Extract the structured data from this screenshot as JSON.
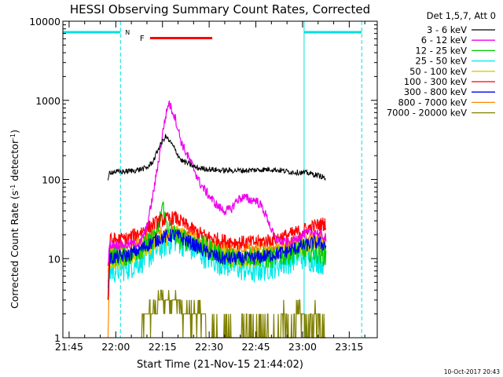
{
  "chart_data": {
    "type": "line",
    "title": "HESSI Observing Summary Count Rates, Corrected",
    "xlabel": "Start Time (21-Nov-15 21:44:02)",
    "ylabel_main": "Corrected Count Rate (s",
    "ylabel_sup1": "-1",
    "ylabel_mid": " detector",
    "ylabel_sup2": "-1",
    "ylabel_end": ")",
    "yscale": "log",
    "ylim": [
      1,
      10000
    ],
    "xlim_minutes": [
      -1,
      100
    ],
    "x_ticks": [
      {
        "m": 1,
        "label": "21:45"
      },
      {
        "m": 16,
        "label": "22:00"
      },
      {
        "m": 31,
        "label": "22:15"
      },
      {
        "m": 46,
        "label": "22:30"
      },
      {
        "m": 61,
        "label": "22:45"
      },
      {
        "m": 76,
        "label": "23:00"
      },
      {
        "m": 91,
        "label": "23:15"
      }
    ],
    "y_ticks": [
      {
        "v": 1,
        "label": "1"
      },
      {
        "v": 10,
        "label": "10"
      },
      {
        "v": 100,
        "label": "100"
      },
      {
        "v": 1000,
        "label": "1000"
      },
      {
        "v": 10000,
        "label": "10000"
      }
    ],
    "legend_header": "Det 1,5,7, Att 0",
    "legend_position": "right",
    "footer_date": "10-Oct-2017 20:43",
    "flag_labels": {
      "night": "N",
      "flare": "F"
    },
    "night_intervals": [
      [
        -1,
        17.5
      ],
      [
        76.5,
        95
      ]
    ],
    "night_lines": [
      17.5,
      76.5,
      95
    ],
    "flare_interval": [
      27,
      47
    ],
    "series": [
      {
        "name": "3 - 6 keV",
        "color": "#000000",
        "x": [
          13.5,
          14,
          18,
          22,
          26,
          28,
          30,
          32,
          34,
          37,
          42,
          50,
          58,
          66,
          72,
          78,
          82,
          83.5
        ],
        "y": [
          90,
          125,
          125,
          130,
          140,
          170,
          260,
          350,
          280,
          175,
          140,
          130,
          130,
          135,
          125,
          120,
          110,
          102
        ]
      },
      {
        "name": "6 - 12 keV",
        "color": "#ee00ee",
        "x": [
          13.5,
          14,
          20,
          24,
          26,
          28,
          30,
          31.5,
          33,
          35,
          37,
          39,
          41,
          43,
          45,
          47,
          49,
          51,
          53,
          55,
          57,
          59,
          61,
          63,
          65,
          67,
          70,
          72,
          76,
          80,
          83.5
        ],
        "y": [
          8,
          15,
          15,
          16,
          25,
          65,
          200,
          500,
          950,
          620,
          300,
          200,
          140,
          90,
          70,
          55,
          45,
          40,
          42,
          55,
          60,
          55,
          55,
          45,
          30,
          18,
          16,
          16,
          20,
          22,
          18
        ]
      },
      {
        "name": "12 - 25 keV",
        "color": "#00cc00",
        "x": [
          13.5,
          14,
          20,
          25,
          28,
          30,
          31,
          32,
          34,
          36,
          40,
          45,
          50,
          55,
          60,
          65,
          70,
          75,
          80,
          83.5
        ],
        "y": [
          4,
          11,
          11,
          14,
          18,
          28,
          48,
          30,
          22,
          18,
          17,
          14,
          11,
          10,
          11,
          10,
          11,
          13,
          12,
          11
        ]
      },
      {
        "name": "25 - 50 keV",
        "color": "#00e8e8",
        "x": [
          13.5,
          14,
          20,
          25,
          30,
          35,
          40,
          45,
          50,
          55,
          60,
          65,
          70,
          75,
          80,
          83.5
        ],
        "y": [
          4,
          7,
          8,
          10,
          14,
          18,
          14,
          11,
          9,
          8,
          7,
          8,
          9,
          11,
          10,
          9
        ]
      },
      {
        "name": "50 - 100 keV",
        "color": "#ddcc00",
        "x": [
          13.5,
          14,
          20,
          25,
          30,
          35,
          40,
          45,
          50,
          55,
          60,
          65,
          70,
          75,
          80,
          83.5
        ],
        "y": [
          7,
          9,
          10,
          13,
          17,
          21,
          18,
          14,
          11,
          10,
          10,
          11,
          12,
          14,
          15,
          14
        ]
      },
      {
        "name": "100 - 300 keV",
        "color": "#ff0000",
        "x": [
          13.5,
          14,
          20,
          25,
          30,
          35,
          40,
          45,
          50,
          55,
          60,
          65,
          70,
          75,
          80,
          83.5
        ],
        "y": [
          3,
          17,
          18,
          23,
          30,
          33,
          24,
          19,
          17,
          16,
          16,
          17,
          19,
          22,
          26,
          28
        ]
      },
      {
        "name": "300 - 800 keV",
        "color": "#0000ee",
        "x": [
          13.5,
          14,
          20,
          25,
          30,
          35,
          40,
          45,
          50,
          55,
          60,
          65,
          70,
          75,
          80,
          83.5
        ],
        "y": [
          3,
          10,
          11,
          14,
          18,
          20,
          16,
          12,
          10,
          10,
          10,
          11,
          12,
          14,
          16,
          15
        ]
      },
      {
        "name": "800 - 7000 keV",
        "color": "#ff8800",
        "x": [
          13.5,
          14,
          20,
          25,
          30,
          35,
          40,
          45,
          50,
          55,
          60,
          65,
          70,
          75,
          80,
          83.5
        ],
        "y": [
          1,
          13,
          14,
          17,
          21,
          22,
          19,
          15,
          13,
          13,
          13,
          14,
          15,
          17,
          19,
          18
        ]
      },
      {
        "name": "7000 - 20000 keV",
        "color": "#808000",
        "x": [
          24,
          26,
          28,
          30,
          32,
          34,
          36,
          38,
          40,
          42,
          44,
          46,
          48,
          68,
          70,
          72,
          74,
          76,
          78,
          80,
          82,
          83.5
        ],
        "y": [
          1,
          2,
          2,
          3,
          3,
          3,
          3,
          2,
          2,
          2,
          2,
          1,
          1,
          1,
          2,
          1,
          2,
          2,
          1,
          2,
          2,
          1
        ]
      }
    ]
  }
}
